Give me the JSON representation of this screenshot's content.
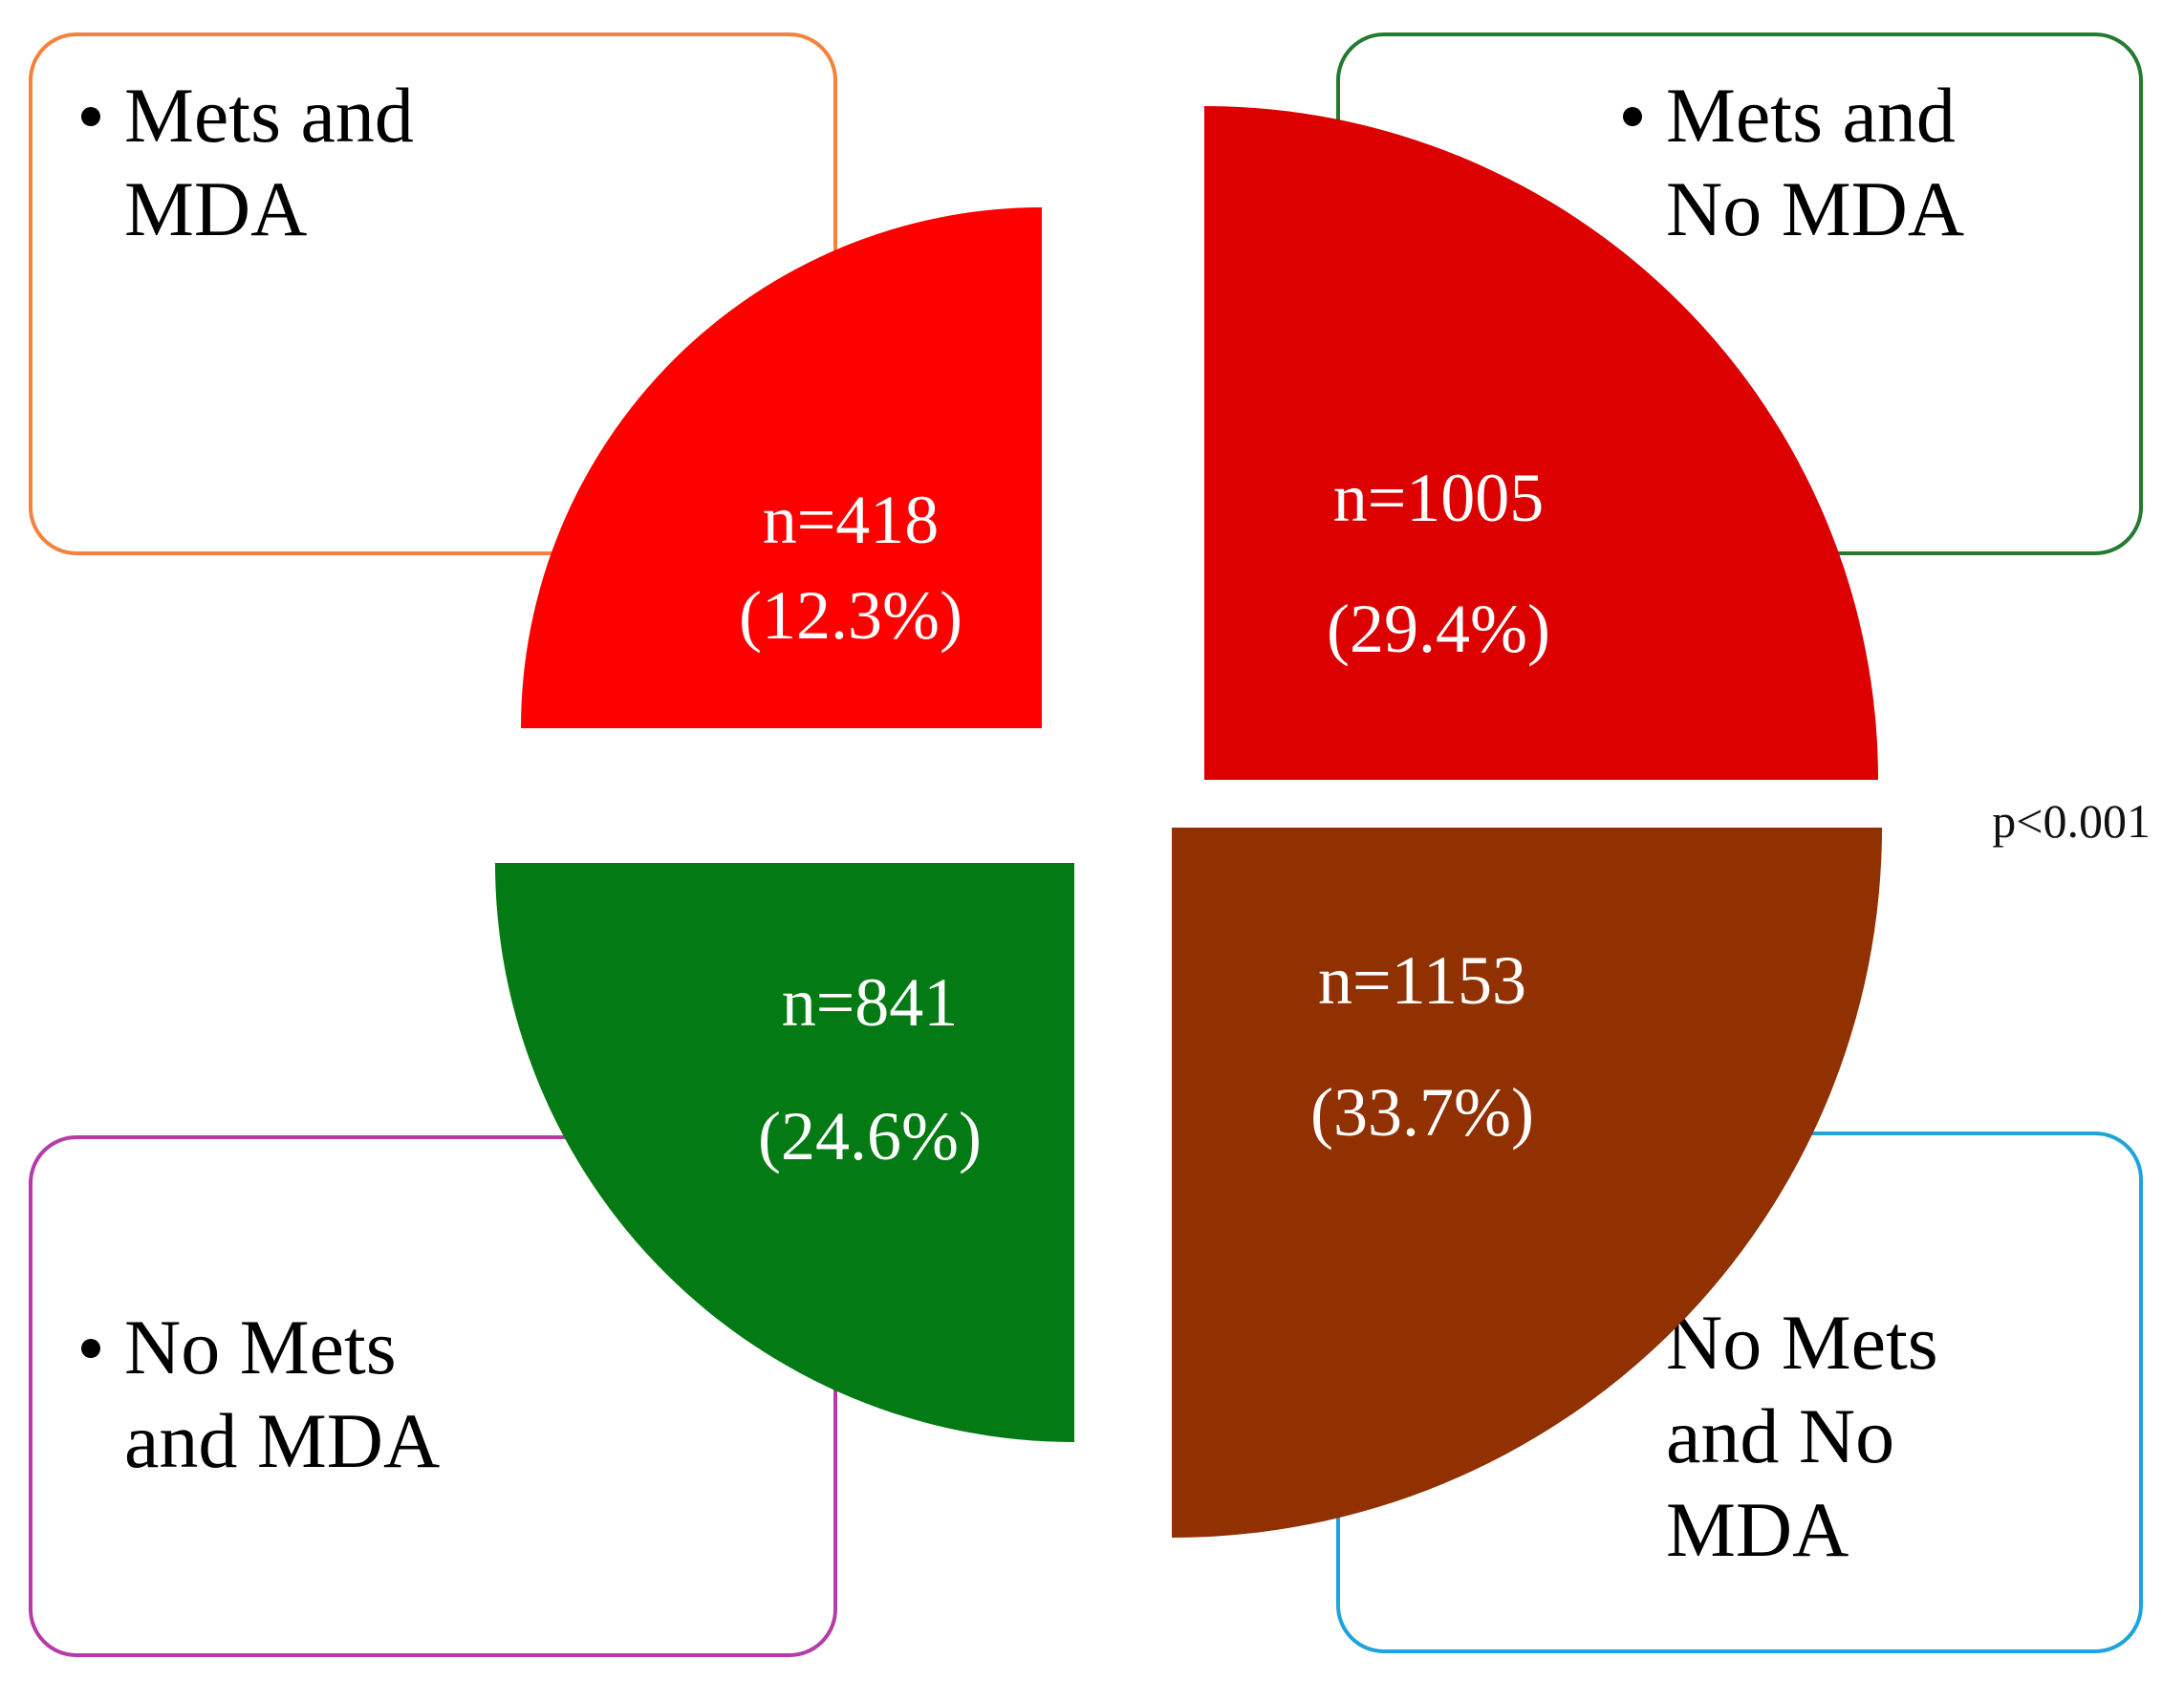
{
  "chart_data": {
    "type": "pie",
    "title": "",
    "note": "p<0.001",
    "slices": [
      {
        "key": "tl",
        "category": "Mets and MDA",
        "count_label": "n=418",
        "percent_label": "(12.3%)",
        "n": 418,
        "percent": 12.3,
        "color": "#ff0000",
        "box_color": "#f4823c"
      },
      {
        "key": "tr",
        "category": "Mets and No MDA",
        "count_label": "n=1005",
        "percent_label": "(29.4%)",
        "n": 1005,
        "percent": 29.4,
        "color": "#dd0000",
        "box_color": "#237a30"
      },
      {
        "key": "bl",
        "category": "No Mets and MDA",
        "count_label": "n=841",
        "percent_label": "(24.6%)",
        "n": 841,
        "percent": 24.6,
        "color": "#037a13",
        "box_color": "#b43ca8"
      },
      {
        "key": "br",
        "category": "No Mets and No MDA",
        "count_label": "n=1153",
        "percent_label": "(33.7%)",
        "n": 1153,
        "percent": 33.7,
        "color": "#913000",
        "box_color": "#1ea3db"
      }
    ]
  },
  "legend_boxes": {
    "tl": [
      "Mets and",
      "MDA"
    ],
    "tr": [
      "Mets and",
      "No MDA"
    ],
    "bl": [
      "No Mets",
      "and MDA"
    ],
    "br": [
      "No Mets",
      "and No",
      "MDA"
    ]
  }
}
